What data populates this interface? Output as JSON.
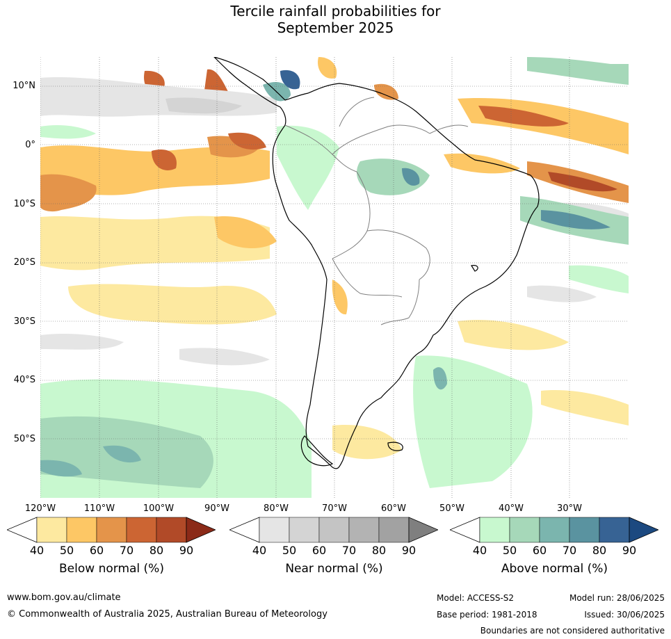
{
  "title_line1": "Tercile rainfall probabilities for",
  "title_line2": "September 2025",
  "lat_labels": [
    "10°N",
    "0°",
    "10°S",
    "20°S",
    "30°S",
    "40°S",
    "50°S"
  ],
  "lon_labels": [
    "120°W",
    "110°W",
    "100°W",
    "90°W",
    "80°W",
    "70°W",
    "60°W",
    "50°W",
    "40°W",
    "30°W"
  ],
  "colorbars": [
    {
      "title": "Below normal (%)",
      "ticks": [
        "40",
        "50",
        "60",
        "70",
        "80",
        "90"
      ],
      "colors": [
        "#fde9a0",
        "#fdc765",
        "#e4944a",
        "#cc6533",
        "#b14a28",
        "#8b2a18"
      ]
    },
    {
      "title": "Near normal (%)",
      "ticks": [
        "40",
        "50",
        "60",
        "70",
        "80",
        "90"
      ],
      "colors": [
        "#e5e5e5",
        "#d4d4d4",
        "#c4c4c4",
        "#b3b3b3",
        "#a2a2a2",
        "#7f7f7f"
      ]
    },
    {
      "title": "Above normal (%)",
      "ticks": [
        "40",
        "50",
        "60",
        "70",
        "80",
        "90"
      ],
      "colors": [
        "#c8f8cf",
        "#a6d8b9",
        "#7bb5ae",
        "#5a93a0",
        "#376394",
        "#1c4980"
      ]
    }
  ],
  "footer": {
    "website": "www.bom.gov.au/climate",
    "copyright": "© Commonwealth of Australia 2025, Australian Bureau of Meteorology",
    "model": "Model: ACCESS-S2",
    "base_period": "Base period: 1981-2018",
    "model_run": "Model run: 28/06/2025",
    "issued": "Issued: 30/06/2025",
    "disclaimer": "Boundaries are not considered authoritative"
  }
}
